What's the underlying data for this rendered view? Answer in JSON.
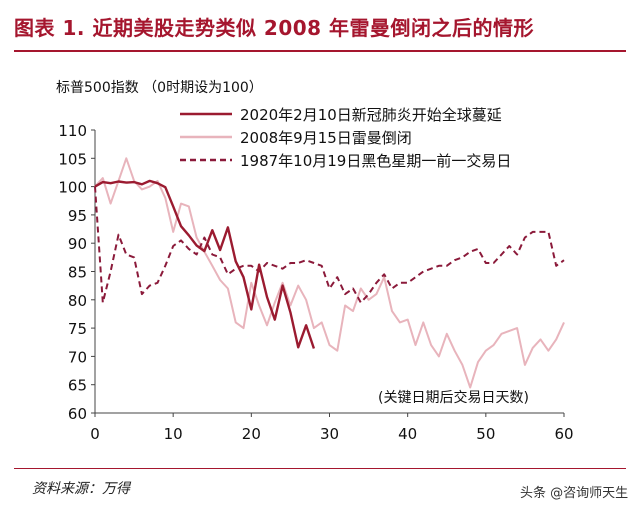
{
  "figure_title": "图表 1. 近期美股走势类似 2008 年雷曼倒闭之后的情形",
  "source_note": "资料来源：万得",
  "watermark": "头条 @咨询师天生",
  "chart_data": {
    "type": "line",
    "ylabel": "标普500指数 （0时期设为100）",
    "xlabel": "(关键日期后交易日天数)",
    "xlim": [
      0,
      60
    ],
    "ylim": [
      60,
      110
    ],
    "xticks": [
      0,
      10,
      20,
      30,
      40,
      50,
      60
    ],
    "yticks": [
      60,
      65,
      70,
      75,
      80,
      85,
      90,
      95,
      100,
      105,
      110
    ],
    "grid": false,
    "legend_position": "top-right",
    "series": [
      {
        "name": "2020年2月10日新冠肺炎开始全球蔓延",
        "color": "#9b1b30",
        "style": "solid",
        "x": [
          0,
          1,
          2,
          3,
          4,
          5,
          6,
          7,
          8,
          9,
          10,
          11,
          12,
          13,
          14,
          15,
          16,
          17,
          18,
          19,
          20,
          21,
          22,
          23,
          24,
          25,
          26,
          27,
          28
        ],
        "y": [
          100,
          100.8,
          100.6,
          100.9,
          100.7,
          100.8,
          100.4,
          101,
          100.6,
          99.9,
          96.5,
          93,
          91.4,
          89.6,
          88.6,
          92.3,
          88.8,
          92.8,
          86.8,
          84,
          78.3,
          86.2,
          80.5,
          76.5,
          82.5,
          77.8,
          71.6,
          75.5,
          71.4
        ]
      },
      {
        "name": "2008年9月15日雷曼倒闭",
        "color": "#e8b4bc",
        "style": "solid",
        "x": [
          0,
          1,
          2,
          3,
          4,
          5,
          6,
          7,
          8,
          9,
          10,
          11,
          12,
          13,
          14,
          15,
          16,
          17,
          18,
          19,
          20,
          21,
          22,
          23,
          24,
          25,
          26,
          27,
          28,
          29,
          30,
          31,
          32,
          33,
          34,
          35,
          36,
          37,
          38,
          39,
          40,
          41,
          42,
          43,
          44,
          45,
          46,
          47,
          48,
          49,
          50,
          51,
          52,
          53,
          54,
          55,
          56,
          57,
          58,
          59,
          60
        ],
        "y": [
          100,
          101.5,
          97,
          101,
          105,
          101,
          99.5,
          100,
          101,
          98,
          92,
          97,
          96.5,
          91,
          88.5,
          86,
          83.5,
          82,
          76,
          75,
          83,
          79,
          75.5,
          79.5,
          83,
          79,
          82.5,
          80,
          75,
          76,
          72,
          71,
          79,
          78,
          82,
          80,
          81,
          84,
          78,
          76,
          76.5,
          72,
          76,
          72,
          70,
          74,
          71,
          68.5,
          64.5,
          69,
          71,
          72,
          74,
          74.5,
          75,
          68.5,
          71.5,
          73,
          71,
          73,
          76
        ]
      },
      {
        "name": "1987年10月19日黑色星期一前一交易日",
        "color": "#8b1a3a",
        "style": "dashed",
        "x": [
          0,
          1,
          2,
          3,
          4,
          5,
          6,
          7,
          8,
          9,
          10,
          11,
          12,
          13,
          14,
          15,
          16,
          17,
          18,
          19,
          20,
          21,
          22,
          23,
          24,
          25,
          26,
          27,
          28,
          29,
          30,
          31,
          32,
          33,
          34,
          35,
          36,
          37,
          38,
          39,
          40,
          41,
          42,
          43,
          44,
          45,
          46,
          47,
          48,
          49,
          50,
          51,
          52,
          53,
          54,
          55,
          56,
          57,
          58,
          59,
          60
        ],
        "y": [
          100,
          79.5,
          85,
          91.5,
          88,
          87.5,
          81,
          82.5,
          83,
          86,
          89.5,
          90.5,
          89,
          88,
          91,
          88,
          87.5,
          84.5,
          85.5,
          86,
          86,
          85,
          86.5,
          86,
          85.5,
          86.5,
          86.5,
          87,
          86.5,
          86,
          82,
          84,
          81,
          82,
          79.5,
          81,
          83,
          84.5,
          82,
          83,
          83,
          84,
          85,
          85.5,
          86,
          86,
          87,
          87.5,
          88.5,
          89,
          86.5,
          86.5,
          88,
          89.5,
          88,
          91,
          92,
          92,
          92,
          86,
          87
        ]
      }
    ]
  }
}
